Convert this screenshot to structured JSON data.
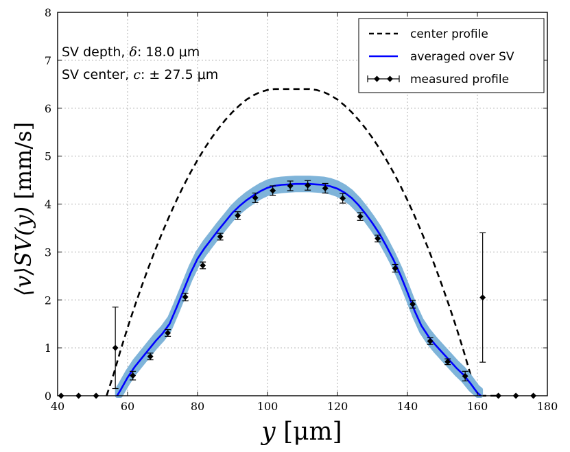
{
  "chart_data": {
    "type": "line",
    "xlabel_var": "y",
    "xlabel_unit": "[μm]",
    "ylabel_math": "⟨v⟩SV(y)",
    "ylabel_unit": "[mm/s]",
    "xlim": [
      40,
      180
    ],
    "ylim": [
      0,
      8
    ],
    "xticks": [
      40,
      60,
      80,
      100,
      120,
      140,
      160,
      180
    ],
    "yticks": [
      0,
      1,
      2,
      3,
      4,
      5,
      6,
      7,
      8
    ],
    "grid": true,
    "legend_position": "top-right",
    "annotations": [
      {
        "prefix": "SV depth, ",
        "symbol": "δ",
        "value": ": 18.0 μm"
      },
      {
        "prefix": "SV center, ",
        "symbol": "c",
        "value": ": ± 27.5 μm"
      }
    ],
    "colors": {
      "center": "#000000",
      "averaged": "#0000ff",
      "band": "#7fb4d9",
      "measured": "#000000",
      "grid": "#b0b0b0"
    },
    "series": [
      {
        "name": "center profile",
        "style": "dashed",
        "x": [
          54,
          56,
          58,
          60,
          62,
          64,
          66,
          68,
          70,
          72,
          74,
          76,
          78,
          80,
          82,
          84,
          86,
          88,
          90,
          92,
          94,
          96,
          98,
          100,
          102,
          104,
          106,
          108,
          110,
          112,
          114,
          116,
          118,
          120,
          122,
          124,
          126,
          128,
          130,
          132,
          134,
          136,
          138,
          140,
          142,
          144,
          146,
          148,
          150,
          152,
          154,
          156,
          158,
          160,
          162,
          164,
          166
        ],
        "y": [
          0,
          0.45,
          0.95,
          1.42,
          1.86,
          2.28,
          2.68,
          3.06,
          3.42,
          3.76,
          4.08,
          4.38,
          4.66,
          4.92,
          5.16,
          5.38,
          5.58,
          5.76,
          5.92,
          6.06,
          6.18,
          6.27,
          6.34,
          6.38,
          6.4,
          6.4,
          6.4,
          6.4,
          6.4,
          6.4,
          6.38,
          6.34,
          6.27,
          6.18,
          6.06,
          5.92,
          5.76,
          5.58,
          5.38,
          5.16,
          4.92,
          4.66,
          4.38,
          4.08,
          3.76,
          3.42,
          3.06,
          2.68,
          2.28,
          1.86,
          1.42,
          0.95,
          0.45,
          0,
          0,
          0,
          0
        ]
      },
      {
        "name": "averaged over SV",
        "style": "solid",
        "band_halfwidth": 0.13,
        "x": [
          57,
          58,
          60,
          62,
          64,
          66,
          68,
          70,
          72,
          74,
          76,
          78,
          80,
          82,
          84,
          86,
          88,
          90,
          92,
          94,
          96,
          98,
          100,
          102,
          104,
          106,
          108,
          110,
          112,
          114,
          116,
          118,
          120,
          122,
          124,
          126,
          128,
          130,
          132,
          134,
          136,
          138,
          140,
          142,
          144,
          146,
          148,
          150,
          152,
          154,
          156,
          158,
          160,
          161
        ],
        "y": [
          0,
          0.12,
          0.38,
          0.6,
          0.78,
          0.96,
          1.14,
          1.3,
          1.5,
          1.84,
          2.2,
          2.56,
          2.86,
          3.08,
          3.27,
          3.46,
          3.64,
          3.82,
          3.96,
          4.08,
          4.18,
          4.27,
          4.34,
          4.38,
          4.4,
          4.41,
          4.42,
          4.42,
          4.42,
          4.41,
          4.4,
          4.37,
          4.32,
          4.24,
          4.13,
          3.98,
          3.8,
          3.6,
          3.38,
          3.12,
          2.84,
          2.52,
          2.16,
          1.78,
          1.46,
          1.24,
          1.06,
          0.9,
          0.74,
          0.58,
          0.44,
          0.26,
          0.06,
          0
        ]
      },
      {
        "name": "measured profile",
        "style": "errorbar",
        "points": [
          {
            "x": 41,
            "y": 0,
            "err": 0
          },
          {
            "x": 46,
            "y": 0,
            "err": 0
          },
          {
            "x": 51,
            "y": 0,
            "err": 0
          },
          {
            "x": 56.5,
            "y": 1.0,
            "err": 0.85
          },
          {
            "x": 61.5,
            "y": 0.42,
            "err": 0.09
          },
          {
            "x": 66.5,
            "y": 0.82,
            "err": 0.07
          },
          {
            "x": 71.5,
            "y": 1.31,
            "err": 0.07
          },
          {
            "x": 76.5,
            "y": 2.06,
            "err": 0.08
          },
          {
            "x": 81.5,
            "y": 2.72,
            "err": 0.07
          },
          {
            "x": 86.5,
            "y": 3.32,
            "err": 0.07
          },
          {
            "x": 91.5,
            "y": 3.76,
            "err": 0.08
          },
          {
            "x": 96.5,
            "y": 4.13,
            "err": 0.1
          },
          {
            "x": 101.5,
            "y": 4.28,
            "err": 0.1
          },
          {
            "x": 106.5,
            "y": 4.38,
            "err": 0.1
          },
          {
            "x": 111.5,
            "y": 4.39,
            "err": 0.1
          },
          {
            "x": 116.5,
            "y": 4.33,
            "err": 0.1
          },
          {
            "x": 121.5,
            "y": 4.12,
            "err": 0.1
          },
          {
            "x": 126.5,
            "y": 3.74,
            "err": 0.08
          },
          {
            "x": 131.5,
            "y": 3.28,
            "err": 0.07
          },
          {
            "x": 136.5,
            "y": 2.66,
            "err": 0.08
          },
          {
            "x": 141.5,
            "y": 1.91,
            "err": 0.08
          },
          {
            "x": 146.5,
            "y": 1.14,
            "err": 0.07
          },
          {
            "x": 151.5,
            "y": 0.71,
            "err": 0.06
          },
          {
            "x": 156.5,
            "y": 0.41,
            "err": 0.1
          },
          {
            "x": 161.5,
            "y": 2.05,
            "err": 1.35
          },
          {
            "x": 166,
            "y": 0,
            "err": 0
          },
          {
            "x": 171,
            "y": 0,
            "err": 0
          },
          {
            "x": 176,
            "y": 0,
            "err": 0
          }
        ]
      }
    ]
  }
}
